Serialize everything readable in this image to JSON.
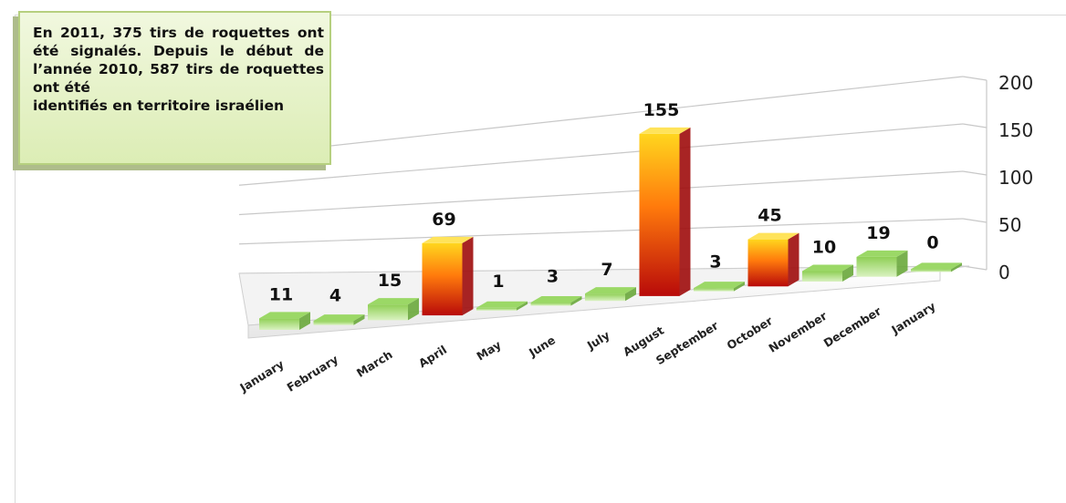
{
  "note": {
    "line1": "En 2011, 375 tirs de roquettes",
    "line2": "ont été signalés. Depuis le",
    "line3": "début de l’année 2010, 587",
    "line4": "tirs de roquettes ont été",
    "line5": "identifiés en territoire israélien"
  },
  "chart_data": {
    "type": "bar",
    "categories": [
      "January",
      "February",
      "March",
      "April",
      "May",
      "June",
      "July",
      "August",
      "September",
      "October",
      "November",
      "December",
      "January"
    ],
    "values": [
      11,
      4,
      15,
      69,
      1,
      3,
      7,
      155,
      3,
      45,
      10,
      19,
      0
    ],
    "y_ticks": [
      "0",
      "50",
      "100",
      "150",
      "200"
    ],
    "ylim": [
      0,
      200
    ],
    "grid": true,
    "colors": {
      "low": "#7dc04a",
      "high_top": "#ffd21c",
      "high_bottom": "#c20e0e"
    }
  }
}
